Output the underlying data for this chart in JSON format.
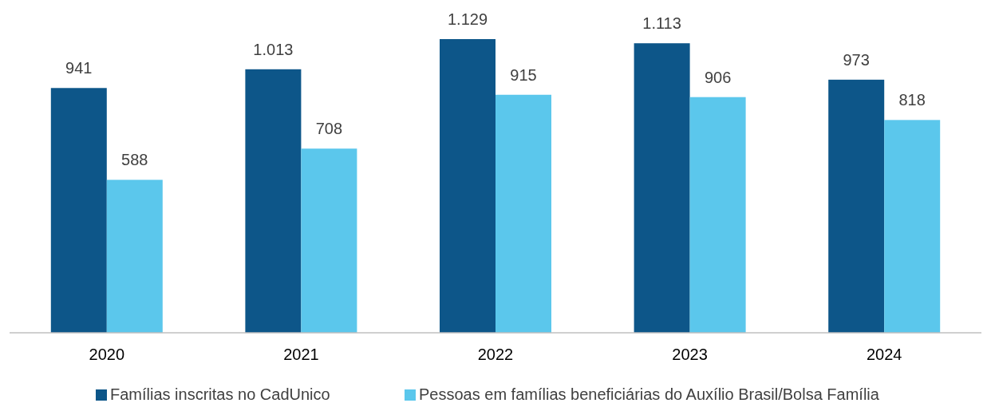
{
  "chart_data": {
    "type": "bar",
    "categories": [
      "2020",
      "2021",
      "2022",
      "2023",
      "2024"
    ],
    "legend": "bottom",
    "series": [
      {
        "name": "Famílias inscritas no CadUnico",
        "color": "#0d5689",
        "values": [
          941,
          1013,
          1129,
          1113,
          973
        ],
        "value_labels": [
          "941",
          "1.013",
          "1.129",
          "1.113",
          "973"
        ]
      },
      {
        "name": "Pessoas em famílias beneficiárias do Auxílio Brasil/Bolsa Família",
        "color": "#5bc7ec",
        "values": [
          588,
          708,
          915,
          906,
          818
        ],
        "value_labels": [
          "588",
          "708",
          "915",
          "906",
          "818"
        ]
      }
    ]
  }
}
